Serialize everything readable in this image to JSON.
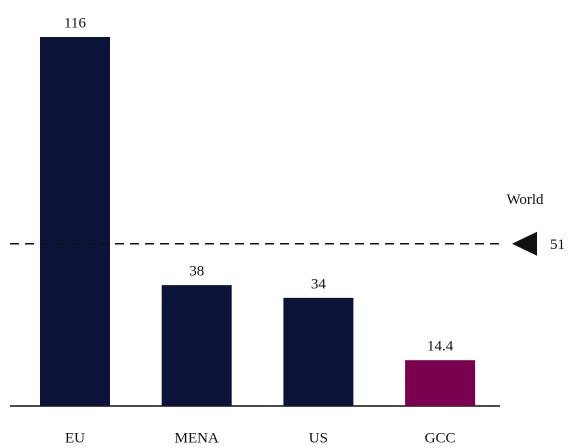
{
  "chart_data": {
    "type": "bar",
    "categories": [
      "EU",
      "MENA",
      "US",
      "GCC"
    ],
    "values": [
      116,
      38,
      34,
      14.4
    ],
    "colors": [
      "#0b1438",
      "#0b1438",
      "#0b1438",
      "#7a0050"
    ],
    "reference": {
      "label": "World",
      "value": 51,
      "style": "dashed",
      "color": "#111111"
    }
  }
}
